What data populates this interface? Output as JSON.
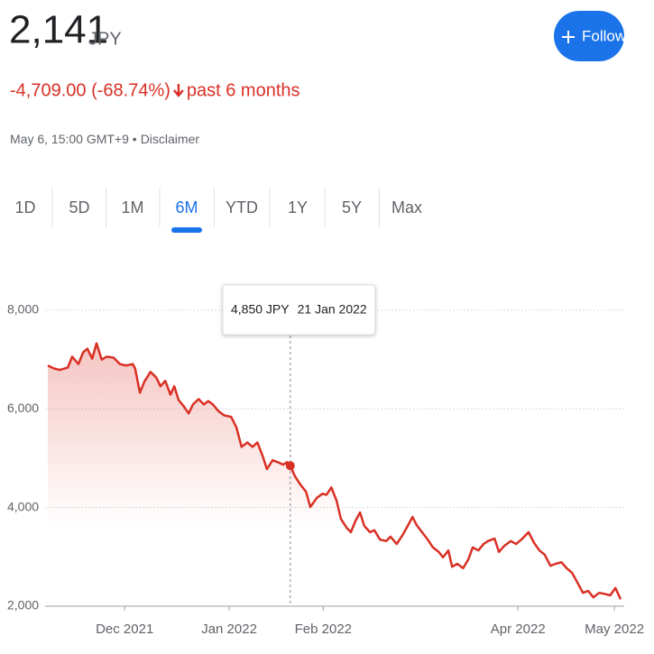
{
  "header": {
    "price": "2,141",
    "currency": "JPY",
    "follow_button": "Follow",
    "change": "-4,709.00 (-68.74%)",
    "period": "past 6 months",
    "timestamp": "May 6, 15:00 GMT+9 •",
    "disclaimer": "Disclaimer"
  },
  "tabs": {
    "items": [
      "1D",
      "5D",
      "1M",
      "6M",
      "YTD",
      "1Y",
      "5Y",
      "Max"
    ],
    "selected": 3
  },
  "chart_data": {
    "type": "line",
    "x": [
      0,
      1.3,
      2.5,
      4.2,
      5.1,
      6.4,
      7.4,
      8.3,
      9.3,
      10.2,
      11.3,
      12.3,
      13.8,
      15.1,
      16.4,
      17.8,
      18.3,
      19.3,
      20.2,
      21.5,
      22.7,
      23.6,
      24.6,
      25.7,
      26.5,
      27.4,
      28.5,
      29.5,
      30.4,
      31.6,
      32.7,
      33.6,
      34.6,
      35.7,
      36.9,
      38.4,
      39.5,
      40.6,
      41.8,
      42.9,
      43.9,
      45.0,
      45.9,
      47.1,
      48.2,
      49.3,
      50.1,
      50.8,
      51.8,
      52.9,
      54.1,
      55.0,
      56.3,
      57.5,
      58.4,
      59.4,
      60.5,
      61.4,
      62.6,
      63.5,
      64.4,
      65.4,
      66.3,
      67.5,
      68.4,
      69.6,
      70.9,
      71.8,
      73.1,
      74.3,
      75.4,
      76.4,
      77.3,
      78.4,
      79.6,
      80.7,
      81.9,
      82.8,
      83.9,
      84.7,
      85.8,
      87.0,
      88.1,
      89.0,
      90.2,
      91.3,
      92.2,
      93.6,
      94.5,
      95.6,
      97.0,
      98.1,
      99.2,
      100.7,
      101.9,
      103.0,
      104.1,
      105.3,
      106.4,
      107.6,
      108.7,
      109.8,
      110.9,
      112.1,
      113.2,
      114.3,
      115.5,
      116.6,
      117.8,
      118.9,
      120.0
    ],
    "values": [
      6880,
      6820,
      6790,
      6840,
      7060,
      6910,
      7150,
      7220,
      7020,
      7330,
      7000,
      7060,
      7040,
      6910,
      6880,
      6910,
      6820,
      6330,
      6550,
      6750,
      6640,
      6460,
      6570,
      6290,
      6460,
      6180,
      6050,
      5910,
      6090,
      6200,
      6090,
      6160,
      6090,
      5960,
      5870,
      5840,
      5630,
      5230,
      5320,
      5230,
      5320,
      5050,
      4780,
      4960,
      4920,
      4870,
      4920,
      4850,
      4630,
      4470,
      4320,
      4010,
      4190,
      4280,
      4260,
      4410,
      4140,
      3770,
      3590,
      3500,
      3720,
      3900,
      3630,
      3500,
      3540,
      3350,
      3320,
      3410,
      3260,
      3440,
      3630,
      3810,
      3640,
      3500,
      3350,
      3190,
      3100,
      2990,
      3130,
      2800,
      2860,
      2770,
      2950,
      3190,
      3130,
      3260,
      3320,
      3370,
      3100,
      3220,
      3320,
      3260,
      3350,
      3500,
      3280,
      3130,
      3040,
      2820,
      2860,
      2890,
      2770,
      2680,
      2490,
      2270,
      2310,
      2180,
      2270,
      2250,
      2220,
      2370,
      2141
    ],
    "color": "#d93025",
    "xlim": [
      0,
      120
    ],
    "xticks": [
      {
        "value": 16.1,
        "label": "Dec 2021"
      },
      {
        "value": 38.0,
        "label": "Jan 2022"
      },
      {
        "value": 57.7,
        "label": "Feb 2022"
      },
      {
        "value": 98.5,
        "label": "Apr 2022"
      },
      {
        "value": 118.7,
        "label": "May 2022"
      }
    ],
    "ylim": [
      2000,
      8000
    ],
    "yticks": [
      {
        "value": 2000,
        "label": "2,000"
      },
      {
        "value": 4000,
        "label": "4,000"
      },
      {
        "value": 6000,
        "label": "6,000"
      },
      {
        "value": 8000,
        "label": "8,000"
      }
    ],
    "grid": true,
    "tooltip": {
      "x": 50.8,
      "value": 4850,
      "value_label": "4,850 JPY",
      "date": "21 Jan 2022"
    }
  }
}
